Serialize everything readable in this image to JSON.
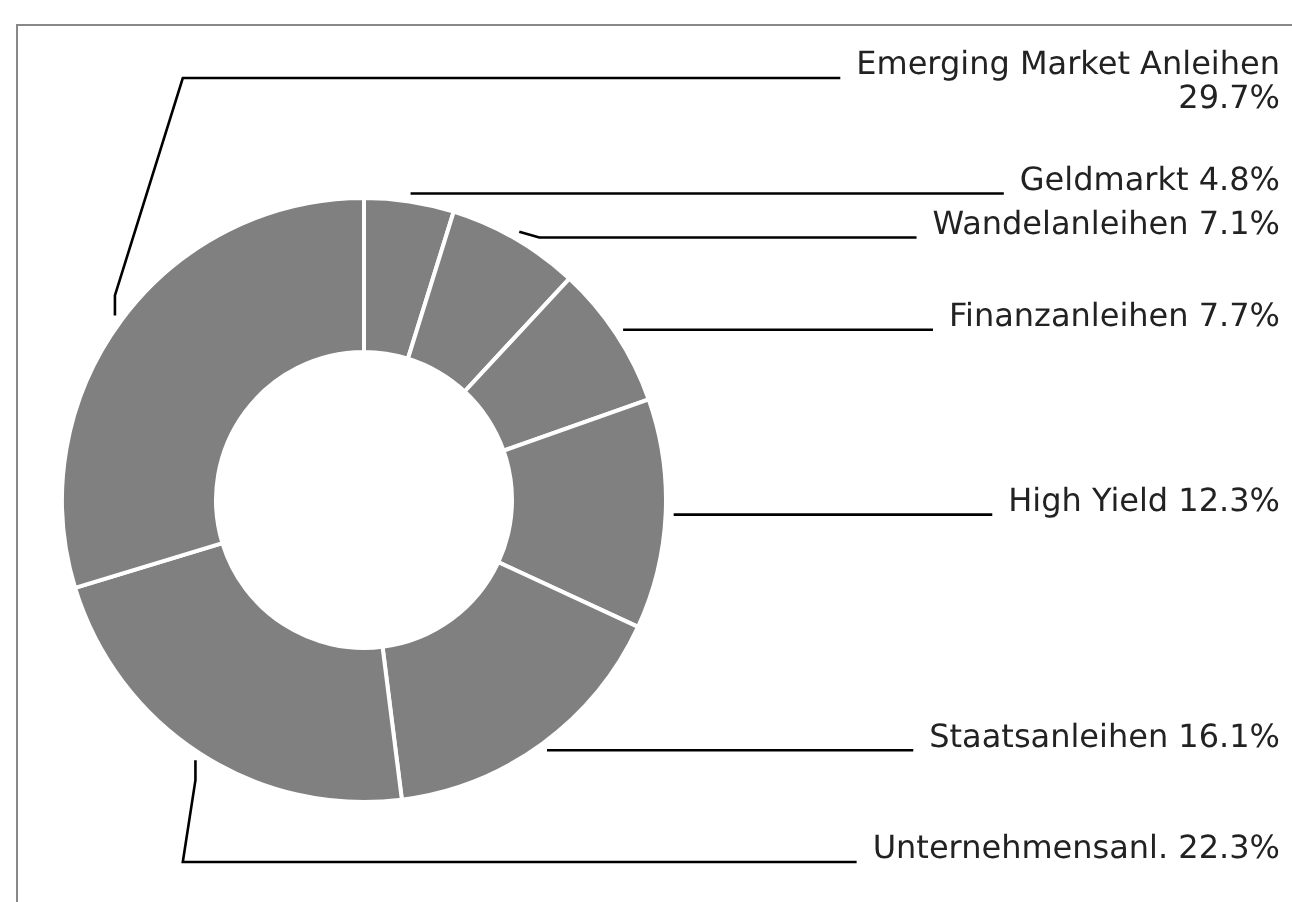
{
  "chart_data": {
    "type": "donut",
    "categories": [
      "Geldmarkt",
      "Wandelanleihen",
      "Finanzanleihen",
      "High Yield",
      "Staatsanleihen",
      "Unternehmensanl.",
      "Emerging Market Anleihen"
    ],
    "values": [
      4.8,
      7.1,
      7.7,
      12.3,
      16.1,
      22.3,
      29.7
    ],
    "value_labels": [
      "4.8%",
      "7.1%",
      "7.7%",
      "12.3%",
      "16.1%",
      "22.3%",
      "29.7%"
    ],
    "colors": [
      "#808080",
      "#808080",
      "#808080",
      "#808080",
      "#808080",
      "#808080",
      "#808080"
    ],
    "legend": false
  }
}
